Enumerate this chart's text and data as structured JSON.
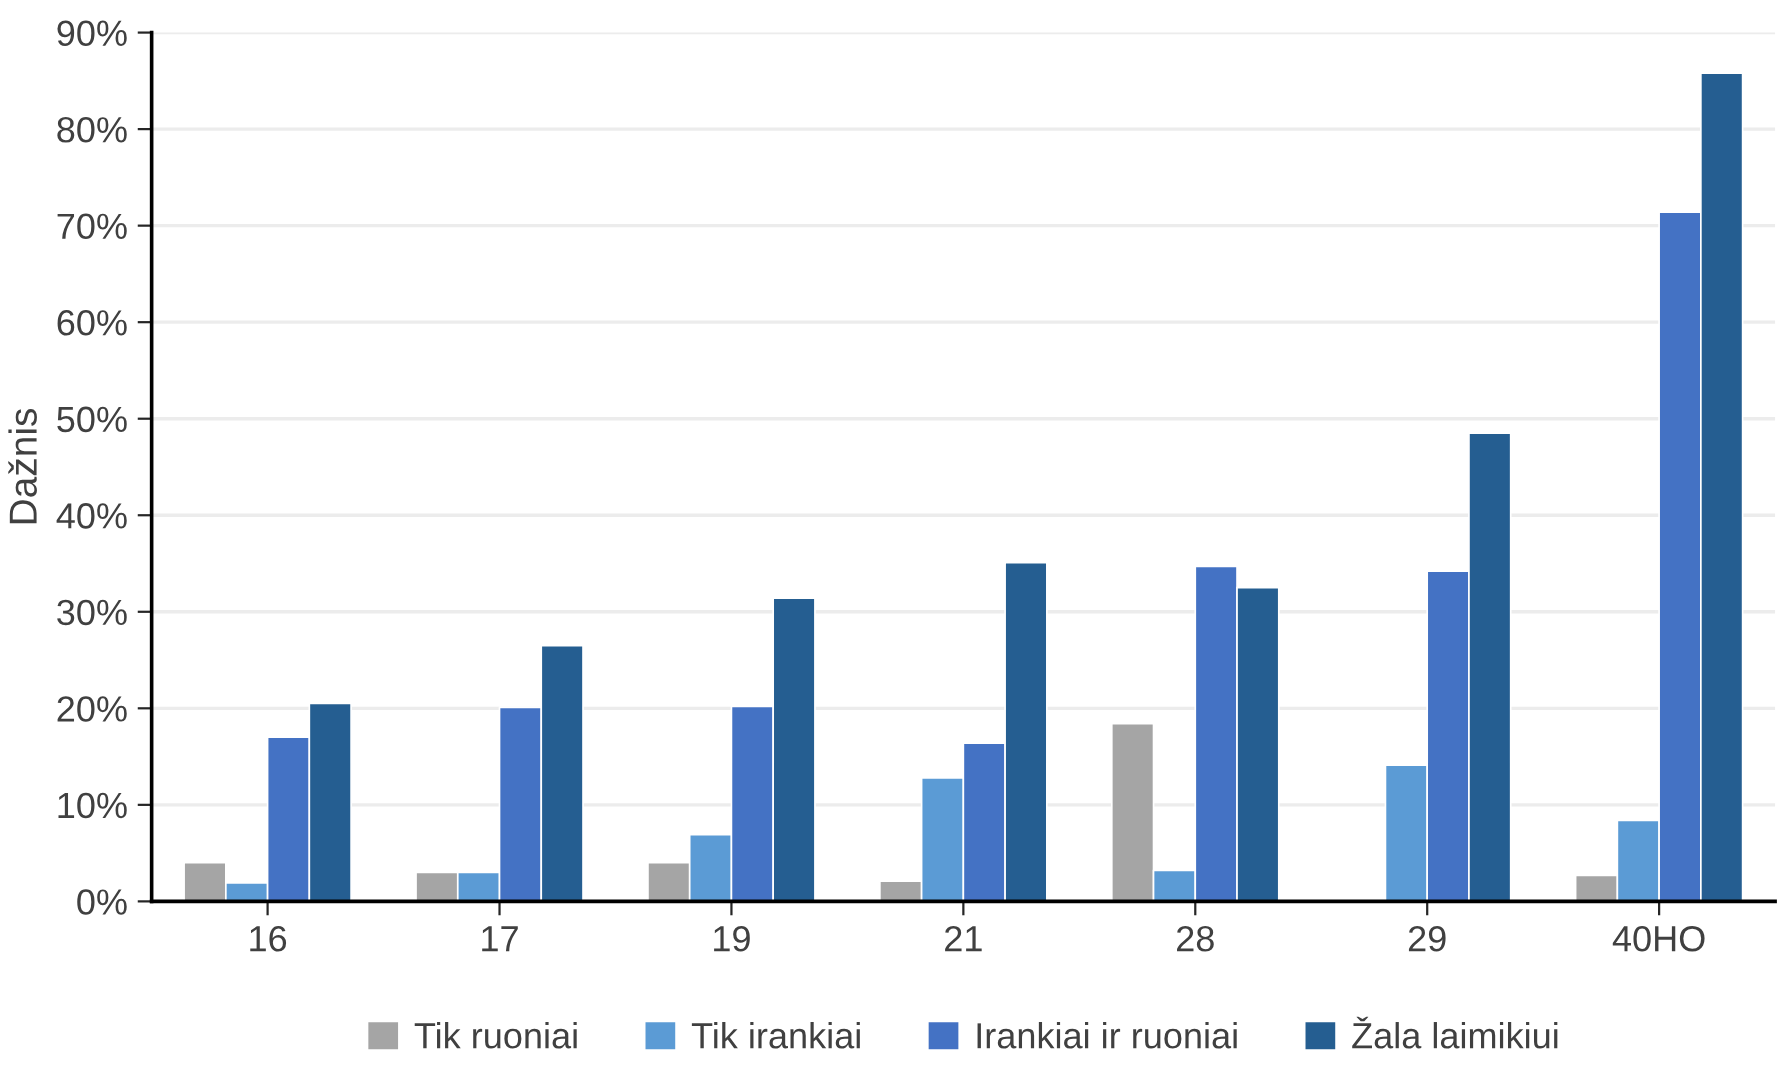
{
  "chart_data": {
    "type": "bar",
    "ylabel": "Dažnis",
    "categories": [
      "16",
      "17",
      "19",
      "21",
      "28",
      "29",
      "40HO"
    ],
    "series": [
      {
        "name": "Tik ruoniai",
        "color": "#a5a5a5",
        "values": [
          4.0,
          3.0,
          4.0,
          2.1,
          18.4,
          null,
          2.7
        ]
      },
      {
        "name": "Tik irankiai",
        "color": "#5b9bd5",
        "values": [
          1.9,
          3.0,
          6.9,
          12.8,
          3.2,
          14.1,
          8.4
        ]
      },
      {
        "name": "Irankiai ir ruoniai",
        "color": "#4472c4",
        "values": [
          17.0,
          20.1,
          20.2,
          16.4,
          34.7,
          34.2,
          71.4
        ]
      },
      {
        "name": "Žala laimikiui",
        "color": "#255e91",
        "values": [
          20.5,
          26.5,
          31.4,
          35.1,
          32.5,
          48.5,
          85.8
        ]
      }
    ],
    "ylim": [
      0,
      90
    ],
    "yticks": [
      {
        "value": 0,
        "label": "0%"
      },
      {
        "value": 10,
        "label": "10%"
      },
      {
        "value": 20,
        "label": "20%"
      },
      {
        "value": 30,
        "label": "30%"
      },
      {
        "value": 40,
        "label": "40%"
      },
      {
        "value": 50,
        "label": "50%"
      },
      {
        "value": 60,
        "label": "60%"
      },
      {
        "value": 70,
        "label": "70%"
      },
      {
        "value": 80,
        "label": "80%"
      },
      {
        "value": 90,
        "label": "90%"
      }
    ],
    "grid": "y",
    "legend": "bottom"
  }
}
